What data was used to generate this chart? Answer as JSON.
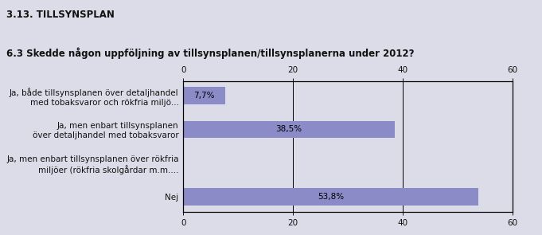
{
  "title": "3.13. TILLSYNSPLAN",
  "subtitle": "6.3 Skedde någon uppföljning av tillsynsplanen/tillsynsplanerna under 2012?",
  "categories": [
    "Ja, både tillsynsplanen över detaljhandel\nmed tobaksvaror och rökfria miljö...",
    "Ja, men enbart tillsynsplanen\növer detaljhandel med tobaksvaror",
    "Ja, men enbart tillsynsplanen över rökfria\nmiljöer (rökfria skolgårdar m.m....",
    "Nej"
  ],
  "values": [
    7.7,
    38.5,
    0.0,
    53.8
  ],
  "bar_color": "#8b8bc8",
  "background_color": "#dcdce8",
  "plot_bg_color": "#dcdce8",
  "xlim": [
    0,
    60
  ],
  "xticks": [
    0,
    20,
    40,
    60
  ],
  "bar_labels": [
    "7,7%",
    "38,5%",
    "",
    "53,8%"
  ],
  "title_fontsize": 8.5,
  "subtitle_fontsize": 8.5,
  "label_fontsize": 7.5,
  "tick_fontsize": 7.5
}
